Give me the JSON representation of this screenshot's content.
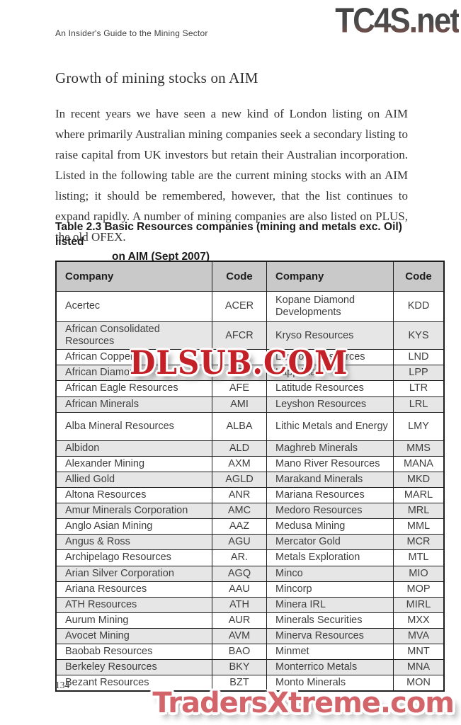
{
  "page": {
    "running_header": "An Insider's Guide to the Mining Sector",
    "section_title": "Growth of mining stocks on AIM",
    "paragraph": "In recent years we have seen a new kind of London listing on AIM where primarily Australian mining companies seek a secondary listing to raise capital from UK investors but retain their Australian incorporation. Listed in the following table are the current mining stocks with an AIM listing; it should be remembered, however, that the list continues to expand rapidly. A number of mining companies are also listed on PLUS, the old OFEX.",
    "page_number": "134"
  },
  "watermarks": {
    "tc4s": "TC4S.net",
    "dlsub": "DLSUB.COM",
    "traders": "TradersXtreme.com",
    "colors": {
      "dlsub_red": "#c32127",
      "traders_fill": "#d2646a",
      "traders_stroke": "#8e353c",
      "tc4s_gradient_top": "#474747",
      "tc4s_gradient_bottom": "#96544c"
    }
  },
  "table": {
    "caption_line1": "Table 2.3 Basic Resources companies (mining and metals exc. Oil) listed",
    "caption_line2": "on AIM (Sept 2007)",
    "headers": [
      "Company",
      "Code",
      "Company",
      "Code"
    ],
    "colors": {
      "header_bg": "#c9c9c9",
      "row_alt_bg": "#e6e6e6",
      "border": "#1d1d1d"
    },
    "rows": [
      [
        "Acertec",
        "ACER",
        "Kopane Diamond Developments",
        "KDD"
      ],
      [
        "African Consolidated Resources",
        "AFCR",
        "Kryso Resources",
        "KYS"
      ],
      [
        "African Copper",
        "ACU",
        "Landore Resources",
        "LND"
      ],
      [
        "African Diamonds",
        "AFD",
        "Lapp Plats",
        "LPP"
      ],
      [
        "African Eagle Resources",
        "AFE",
        "Latitude Resources",
        "LTR"
      ],
      [
        "African Minerals",
        "AMI",
        "Leyshon Resources",
        "LRL"
      ],
      [
        "Alba Mineral Resources",
        "ALBA",
        "Lithic Metals and Energy",
        "LMY"
      ],
      [
        "Albidon",
        "ALD",
        "Maghreb Minerals",
        "MMS"
      ],
      [
        "Alexander Mining",
        "AXM",
        "Mano River Resources",
        "MANA"
      ],
      [
        "Allied Gold",
        "AGLD",
        "Marakand Minerals",
        "MKD"
      ],
      [
        "Altona Resources",
        "ANR",
        "Mariana Resources",
        "MARL"
      ],
      [
        "Amur Minerals Corporation",
        "AMC",
        "Medoro Resources",
        "MRL"
      ],
      [
        "Anglo Asian Mining",
        "AAZ",
        "Medusa Mining",
        "MML"
      ],
      [
        "Angus & Ross",
        "AGU",
        "Mercator Gold",
        "MCR"
      ],
      [
        "Archipelago Resources",
        "AR.",
        "Metals Exploration",
        "MTL"
      ],
      [
        "Arian Silver Corporation",
        "AGQ",
        "Minco",
        "MIO"
      ],
      [
        "Ariana Resources",
        "AAU",
        "Mincorp",
        "MOP"
      ],
      [
        "ATH Resources",
        "ATH",
        "Minera IRL",
        "MIRL"
      ],
      [
        "Aurum Mining",
        "AUR",
        "Minerals Securities",
        "MXX"
      ],
      [
        "Avocet Mining",
        "AVM",
        "Minerva Resources",
        "MVA"
      ],
      [
        "Baobab Resources",
        "BAO",
        "Minmet",
        "MNT"
      ],
      [
        "Berkeley Resources",
        "BKY",
        "Monterrico Metals",
        "MNA"
      ],
      [
        "Bezant Resources",
        "BZT",
        "Monto Minerals",
        "MON"
      ]
    ]
  }
}
